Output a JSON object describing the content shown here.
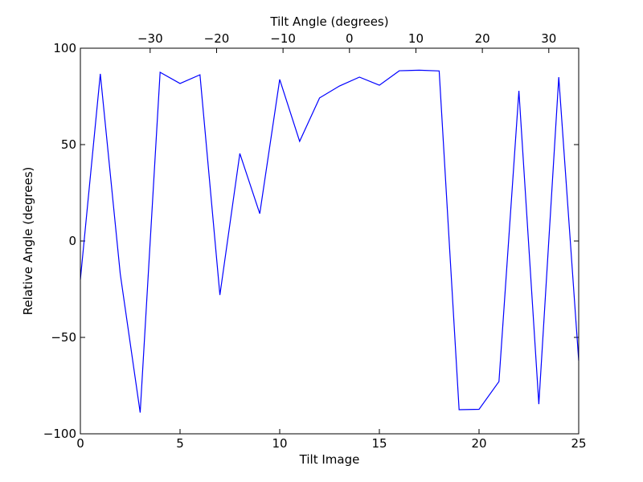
{
  "chart_data": {
    "type": "line",
    "title": "",
    "xlabel": "Tilt Image",
    "ylabel": "Relative Angle (degrees)",
    "top_xlabel": "Tilt Angle (degrees)",
    "xlim": [
      0,
      25
    ],
    "ylim": [
      -100,
      100
    ],
    "x_ticks": [
      0,
      5,
      10,
      15,
      20,
      25
    ],
    "x_tick_labels": [
      "0",
      "5",
      "10",
      "15",
      "20",
      "25"
    ],
    "y_ticks": [
      100,
      50,
      0,
      -50,
      -100
    ],
    "y_tick_labels": [
      "100",
      "50",
      "0",
      "−50",
      "−100"
    ],
    "top_ticks": [
      -30,
      -20,
      -10,
      0,
      10,
      20,
      30
    ],
    "top_tick_labels": [
      "−30",
      "−20",
      "−10",
      "0",
      "10",
      "20",
      "30"
    ],
    "top_xlim": [
      -40.5,
      34.5
    ],
    "grid": false,
    "series": [
      {
        "color": "#0000ff",
        "x": [
          0,
          1,
          2,
          3,
          4,
          5,
          6,
          7,
          8,
          9,
          10,
          11,
          12,
          13,
          14,
          15,
          16,
          17,
          18,
          19,
          20,
          21,
          22,
          23,
          24,
          25
        ],
        "values": [
          -20,
          86.7,
          -17,
          -89,
          87.5,
          81.7,
          86.2,
          -28,
          45.4,
          14.2,
          83.8,
          51.7,
          74.2,
          80.4,
          85,
          80.8,
          88.3,
          88.6,
          88.2,
          -87.5,
          -87.3,
          -72.9,
          77.9,
          -84.6,
          85,
          -62
        ]
      }
    ]
  }
}
